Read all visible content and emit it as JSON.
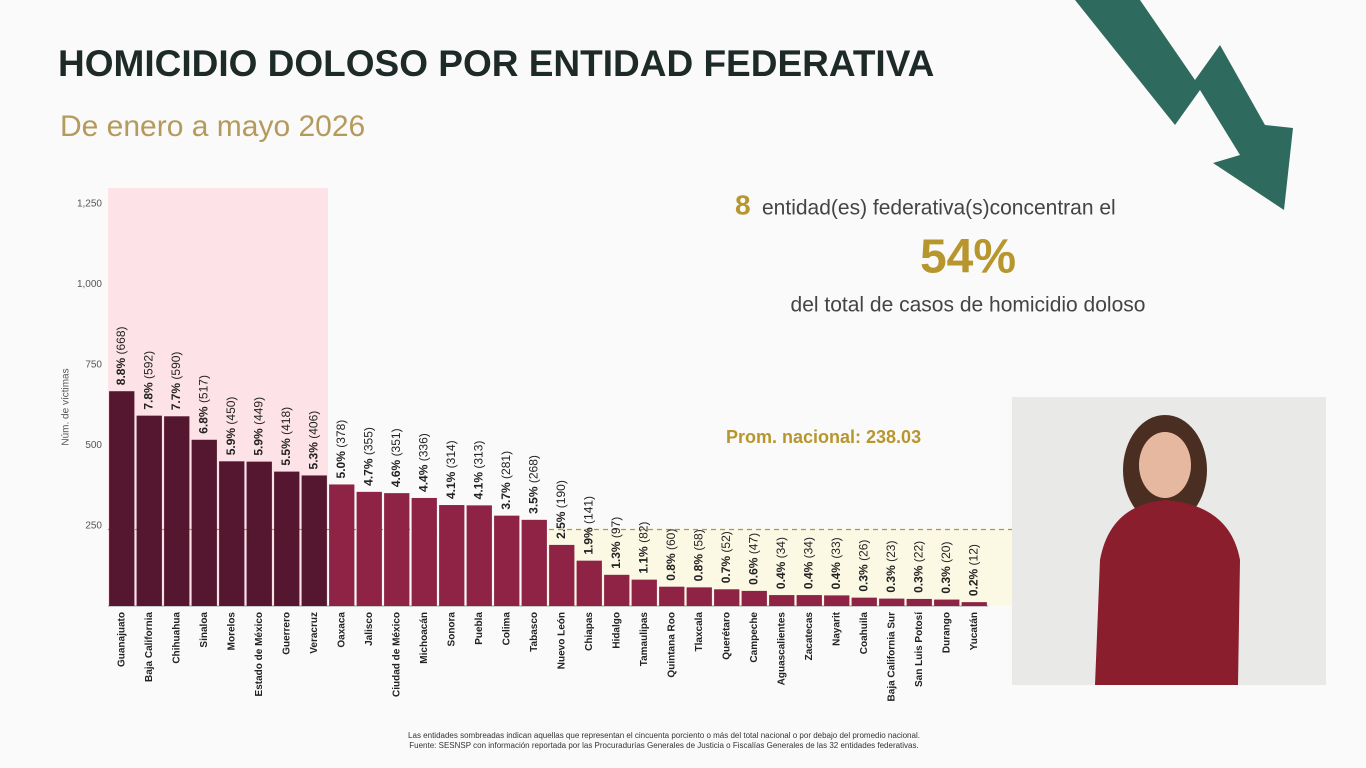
{
  "header": {
    "title": "HOMICIDIO DOLOSO POR ENTIDAD FEDERATIVA",
    "subtitle": "De enero a mayo 2026"
  },
  "chart_data": {
    "type": "bar",
    "y_label": "Núm. de víctimas",
    "categories": [
      "Guanajuato",
      "Baja California",
      "Chihuahua",
      "Sinaloa",
      "Morelos",
      "Estado de México",
      "Guerrero",
      "Veracruz",
      "Oaxaca",
      "Jalisco",
      "Ciudad de México",
      "Michoacán",
      "Sonora",
      "Puebla",
      "Colima",
      "Tabasco",
      "Nuevo León",
      "Chiapas",
      "Hidalgo",
      "Tamaulipas",
      "Quintana Roo",
      "Tlaxcala",
      "Querétaro",
      "Campeche",
      "Aguascalientes",
      "Zacatecas",
      "Nayarit",
      "Coahuila",
      "Baja California Sur",
      "San Luis Potosí",
      "Durango",
      "Yucatán"
    ],
    "values": [
      668,
      592,
      590,
      517,
      450,
      449,
      418,
      406,
      378,
      355,
      351,
      336,
      314,
      313,
      281,
      268,
      190,
      141,
      97,
      82,
      60,
      58,
      52,
      47,
      34,
      34,
      33,
      26,
      23,
      22,
      20,
      12
    ],
    "value_labels": [
      "(668)",
      "(592)",
      "(590)",
      "(517)",
      "(450)",
      "(449)",
      "(418)",
      "(406)",
      "(378)",
      "(355)",
      "(351)",
      "(336)",
      "(314)",
      "(313)",
      "(281)",
      "(268)",
      "(190)",
      "(141)",
      "(97)",
      "(82)",
      "(60)",
      "(58)",
      "(52)",
      "(47)",
      "(34)",
      "(34)",
      "(33)",
      "(26)",
      "(23)",
      "(22)",
      "(20)",
      "(12)"
    ],
    "shares": [
      "8.8%",
      "7.8%",
      "7.7%",
      "6.8%",
      "5.9%",
      "5.9%",
      "5.5%",
      "5.3%",
      "5.0%",
      "4.7%",
      "4.6%",
      "4.4%",
      "4.1%",
      "4.1%",
      "3.7%",
      "3.5%",
      "2.5%",
      "1.9%",
      "1.3%",
      "1.1%",
      "0.8%",
      "0.8%",
      "0.7%",
      "0.6%",
      "0.4%",
      "0.4%",
      "0.4%",
      "0.3%",
      "0.3%",
      "0.3%",
      "0.3%",
      "0.2%"
    ],
    "color": "#8e2346",
    "highlight_color": "#54172f",
    "ylim": [
      0,
      1300
    ],
    "yticks": [
      250,
      500,
      750,
      {
        "value": 1000,
        "label": "1,000"
      },
      {
        "value": 1250,
        "label": "1,250"
      }
    ],
    "average": {
      "value": 238.03,
      "label": "Prom. nacional: 238.03"
    }
  },
  "callout": {
    "count": 8,
    "text_1": "entidad(es) federativa(s)concentran el",
    "share": "54%",
    "text_2": "del total de casos de homicidio doloso"
  },
  "footnotes": [
    "Las entidades sombreadas indican aquellas que representan el cincuenta porciento o más del total nacional o por debajo del promedio nacional.",
    "Fuente: SESNSP con información reportada por las Procuradurías Generales de Justicia o Fiscalías Generales de las 32 entidades federativas."
  ]
}
